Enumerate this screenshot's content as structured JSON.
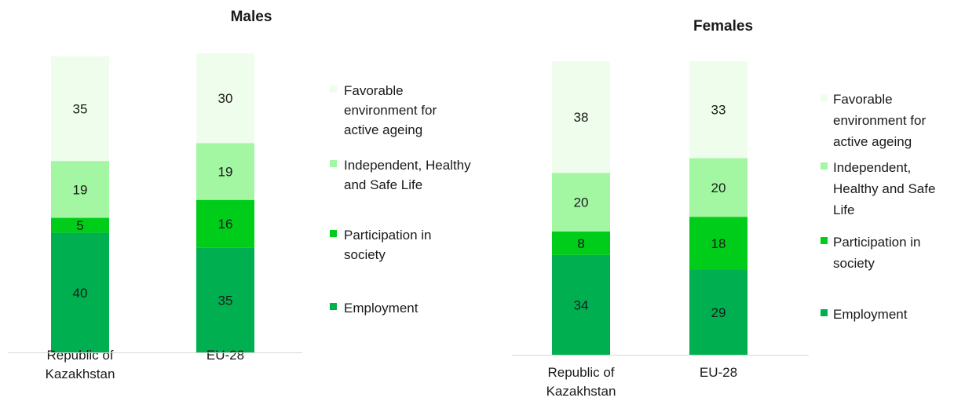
{
  "chart_data": [
    {
      "type": "bar",
      "stacked": true,
      "title": "Males",
      "categories": [
        "Republic of Kazakhstan",
        "EU-28"
      ],
      "series": [
        {
          "name": "Employment",
          "values": [
            40,
            35
          ],
          "color": "#00b050"
        },
        {
          "name": "Participation in society",
          "values": [
            5,
            16
          ],
          "color": "#00cc1a"
        },
        {
          "name": "Independent, Healthy and Safe Life",
          "values": [
            19,
            19
          ],
          "color": "#a3f7a3"
        },
        {
          "name": "Favorable environment for active ageing",
          "values": [
            35,
            30
          ],
          "color": "#effdec"
        }
      ],
      "ylim": [
        0,
        100
      ],
      "grid": false,
      "legend": "right"
    },
    {
      "type": "bar",
      "stacked": true,
      "title": "Females",
      "categories": [
        "Republic of Kazakhstan",
        "EU-28"
      ],
      "series": [
        {
          "name": "Employment",
          "values": [
            34,
            29
          ],
          "color": "#00b050"
        },
        {
          "name": "Participation in society",
          "values": [
            8,
            18
          ],
          "color": "#00cc1a"
        },
        {
          "name": "Independent, Healthy and Safe Life",
          "values": [
            20,
            20
          ],
          "color": "#a3f7a3"
        },
        {
          "name": "Favorable environment for active ageing",
          "values": [
            38,
            33
          ],
          "color": "#effdec"
        }
      ],
      "ylim": [
        0,
        100
      ],
      "grid": false,
      "legend": "right"
    }
  ]
}
